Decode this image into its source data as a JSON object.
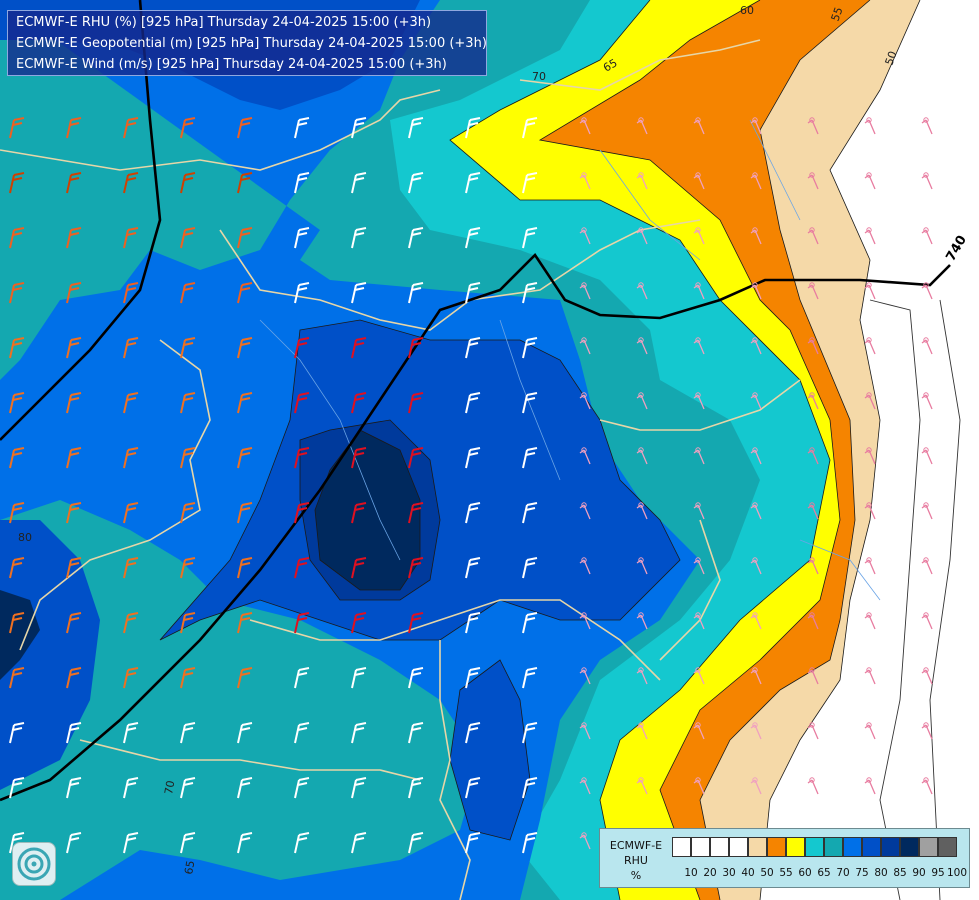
{
  "header": {
    "line1": "ECMWF-E RHU (%) [925 hPa] Thursday 24-04-2025 15:00 (+3h)",
    "line2": "ECMWF-E Geopotential (m) [925 hPa] Thursday 24-04-2025 15:00 (+3h)",
    "line3": "ECMWF-E Wind (m/s) [925 hPa] Thursday 24-04-2025 15:00 (+3h)"
  },
  "legend": {
    "title_line1": "ECMWF-E",
    "title_line2": "RHU",
    "title_line3": "%",
    "levels": [
      "10",
      "20",
      "30",
      "40",
      "50",
      "55",
      "60",
      "65",
      "70",
      "75",
      "80",
      "85",
      "90",
      "95",
      "100"
    ],
    "colors": [
      "#ffffff",
      "#ffffff",
      "#ffffff",
      "#ffffff",
      "#f5d9a8",
      "#f58400",
      "#ffff00",
      "#14c8cf",
      "#14a8b0",
      "#0070e8",
      "#0050c8",
      "#003a9c",
      "#00295e",
      "#a0a0a0",
      "#606060"
    ]
  },
  "contour_labels": {
    "rhu_70_top": "70",
    "rhu_65_top": "65",
    "rhu_60_top": "60",
    "rhu_55_top": "55",
    "rhu_50_top": "50",
    "rhu_80_left": "80",
    "rhu_70_bottom": "70",
    "rhu_65_bottom": "65",
    "geo_740": "740"
  },
  "colors": {
    "rhu_95": "#00295e",
    "rhu_90": "#003a9c",
    "rhu_85": "#0050c8",
    "rhu_80": "#0070e8",
    "rhu_75": "#14a8b0",
    "rhu_70": "#14c8cf",
    "rhu_65": "#ffff00",
    "rhu_60": "#f58400",
    "rhu_55": "#f5d9a8",
    "rhu_50": "#ffffff"
  },
  "logo": {
    "icon": "ecmwf-logo-icon"
  }
}
